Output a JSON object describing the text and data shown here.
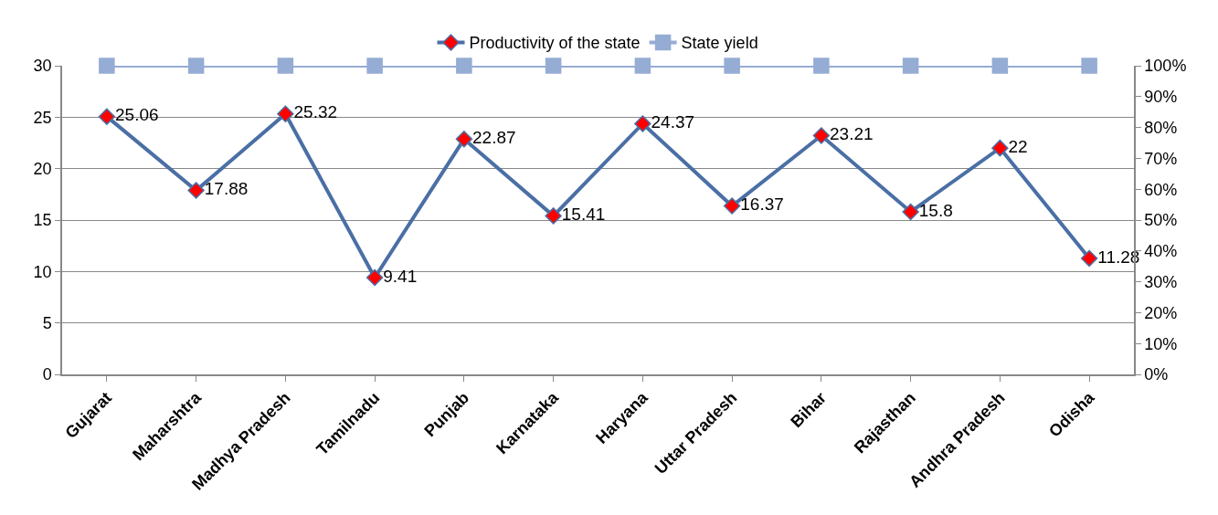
{
  "chart_data": {
    "type": "line",
    "categories": [
      "Gujarat",
      "Maharshtra",
      "Madhya Pradesh",
      "Tamilnadu",
      "Punjab",
      "Karnataka",
      "Haryana",
      "Uttar Pradesh",
      "Bihar",
      "Rajasthan",
      "Andhra Pradesh",
      "Odisha"
    ],
    "series": [
      {
        "name": "Productivity of the state",
        "color": "#4a6fa5",
        "marker": "diamond",
        "colors": [
          "#ff0000",
          "#ff0000",
          "#ff0000",
          "#ff0000",
          "#ff0000",
          "#ff0000",
          "#ff0000",
          "#ff0000",
          "#ff0000",
          "#ff0000",
          "#ff0000",
          "#ff0000"
        ],
        "values": [
          25.06,
          17.88,
          25.32,
          9.41,
          22.87,
          15.41,
          24.37,
          16.37,
          23.21,
          15.8,
          22,
          11.28
        ],
        "value_labels": [
          "25.06",
          "17.88",
          "25.32",
          "9.41",
          "22.87",
          "15.41",
          "24.37",
          "16.37",
          "23.21",
          "15.8",
          "22",
          "11.28"
        ]
      },
      {
        "name": "State yield",
        "color": "#95acd4",
        "marker": "square",
        "axis": "y2",
        "values": [
          100,
          100,
          100,
          100,
          100,
          100,
          100,
          100,
          100,
          100,
          100,
          100
        ]
      }
    ],
    "ylim": [
      0,
      30
    ],
    "yticks": [
      0,
      5,
      10,
      15,
      20,
      25,
      30
    ],
    "y2lim": [
      0,
      100
    ],
    "y2ticks": [
      {
        "value": 0,
        "label": "0%"
      },
      {
        "value": 10,
        "label": "10%"
      },
      {
        "value": 20,
        "label": "20%"
      },
      {
        "value": 30,
        "label": "30%"
      },
      {
        "value": 40,
        "label": "40%"
      },
      {
        "value": 50,
        "label": "50%"
      },
      {
        "value": 60,
        "label": "60%"
      },
      {
        "value": 70,
        "label": "70%"
      },
      {
        "value": 80,
        "label": "80%"
      },
      {
        "value": 90,
        "label": "90%"
      },
      {
        "value": 100,
        "label": "100%"
      }
    ],
    "grid": "y",
    "legend": "top",
    "line_style": "solid"
  }
}
